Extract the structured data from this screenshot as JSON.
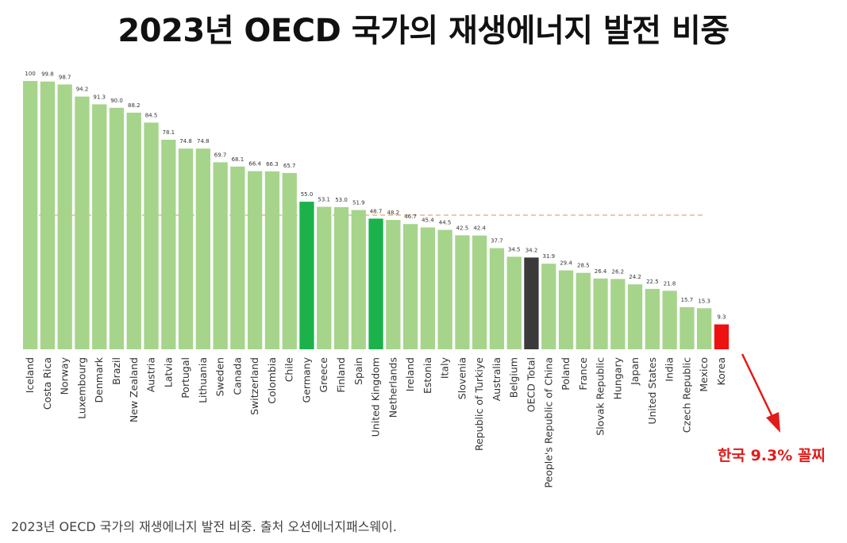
{
  "page": {
    "title": "2023년 OECD 국가의 재생에너지 발전 비중",
    "caption": "2023년 OECD 국가의 재생에너지 발전 비중. 출처 오션에너지패스웨이."
  },
  "colors": {
    "default_bar": "#a6d48b",
    "highlight_bar": "#1bb24c",
    "oecd_bar": "#3a3a3a",
    "korea_bar": "#ee1111",
    "reference_line": "#f2b486",
    "arrow": "#e21b1b"
  },
  "chart_data": {
    "type": "bar",
    "title": "2023년 OECD 국가의 재생에너지 발전 비중",
    "xlabel": "",
    "ylabel": "",
    "ylim": [
      0,
      100
    ],
    "grid": false,
    "legend": "none",
    "reference_line": 50,
    "categories": [
      "Iceland",
      "Costa Rica",
      "Norway",
      "Luxembourg",
      "Denmark",
      "Brazil",
      "New Zealand",
      "Austria",
      "Latvia",
      "Portugal",
      "Lithuania",
      "Sweden",
      "Canada",
      "Switzerland",
      "Colombia",
      "Chile",
      "Germany",
      "Greece",
      "Finland",
      "Spain",
      "United Kingdom",
      "Netherlands",
      "Ireland",
      "Estonia",
      "Italy",
      "Slovenia",
      "Republic of Turkiye",
      "Australia",
      "Belgium",
      "OECD Total",
      "People's Republic of China",
      "Poland",
      "France",
      "Slovak Republic",
      "Hungary",
      "Japan",
      "United States",
      "India",
      "Czech Republic",
      "Mexico",
      "Korea"
    ],
    "values": [
      100,
      99.8,
      98.7,
      94.2,
      91.3,
      90.0,
      88.2,
      84.5,
      78.1,
      74.8,
      74.8,
      69.7,
      68.1,
      66.4,
      66.3,
      65.7,
      55.0,
      53.1,
      53.0,
      51.9,
      48.7,
      48.2,
      46.7,
      45.4,
      44.5,
      42.5,
      42.4,
      37.7,
      34.5,
      34.2,
      31.9,
      29.4,
      28.5,
      26.4,
      26.2,
      24.2,
      22.5,
      21.8,
      15.7,
      15.3,
      9.3
    ],
    "value_labels": [
      "100",
      "99.8",
      "98.7",
      "94.2",
      "91.3",
      "90.0",
      "88.2",
      "84.5",
      "78.1",
      "74.8",
      "74.8",
      "69.7",
      "68.1",
      "66.4",
      "66.3",
      "65.7",
      "55.0",
      "53.1",
      "53.0",
      "51.9",
      "48.7",
      "48.2",
      "46.7",
      "45.4",
      "44.5",
      "42.5",
      "42.4",
      "37.7",
      "34.5",
      "34.2",
      "31.9",
      "29.4",
      "28.5",
      "26.4",
      "26.2",
      "24.2",
      "22.5",
      "21.8",
      "15.7",
      "15.3",
      "9.3"
    ],
    "highlight": {
      "Germany": "highlight_bar",
      "United Kingdom": "highlight_bar",
      "OECD Total": "oecd_bar",
      "Korea": "korea_bar"
    },
    "annotation": "한국 9.3% 꼴찌"
  }
}
